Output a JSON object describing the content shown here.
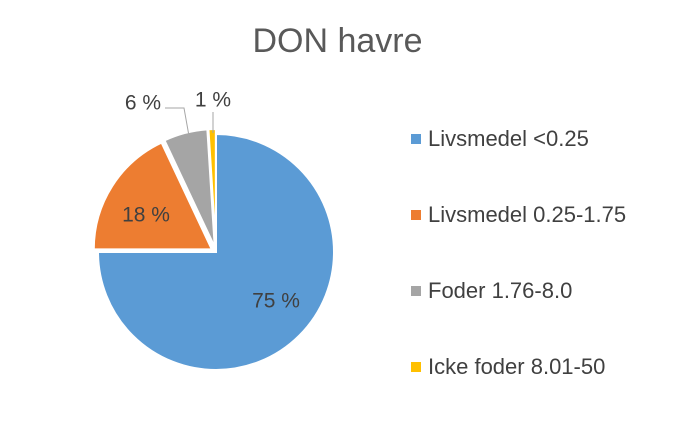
{
  "chart_data": {
    "type": "pie",
    "title": "DON havre",
    "categories": [
      "Livsmedel <0.25",
      "Livsmedel 0.25-1.75",
      "Foder 1.76-8.0",
      "Icke foder 8.01-50"
    ],
    "values": [
      75,
      18,
      6,
      1
    ],
    "data_labels": [
      "75 %",
      "18 %",
      "6 %",
      "1 %"
    ],
    "colors": [
      "#5B9BD5",
      "#ED7D31",
      "#A5A5A5",
      "#FFC000"
    ],
    "legend_position": "right",
    "start_angle": "12 o'clock",
    "direction": "clockwise"
  }
}
